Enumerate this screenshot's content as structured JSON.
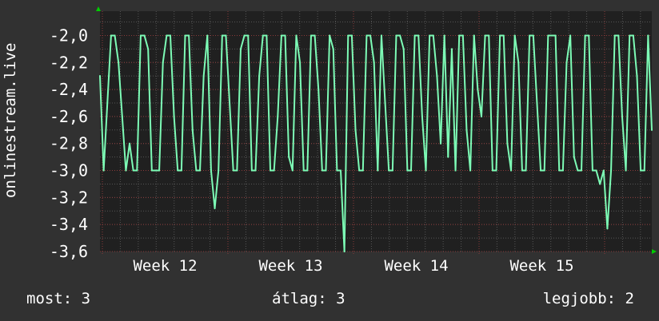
{
  "chart_data": {
    "type": "line",
    "ylabel": "onlinestream.live",
    "ylim": [
      -3.6,
      -1.82
    ],
    "yticks": [
      "-2,0",
      "-2,2",
      "-2,4",
      "-2,6",
      "-2,8",
      "-3,0",
      "-3,2",
      "-3,4",
      "-3,6"
    ],
    "ytick_values": [
      -2.0,
      -2.2,
      -2.4,
      -2.6,
      -2.8,
      -3.0,
      -3.2,
      -3.4,
      -3.6
    ],
    "xticks": [
      "Week 12",
      "Week 13",
      "Week 14",
      "Week 15"
    ],
    "grid": true,
    "colors": {
      "background": "#313131",
      "plot": "#202020",
      "line": "#7dfcb6",
      "major_grid": "#8a3a3a",
      "minor_grid": "#555555",
      "arrow": "#00cc00"
    },
    "series": [
      {
        "values": [
          -2.3,
          -3.0,
          -2.5,
          -2.0,
          -2.0,
          -2.2,
          -2.6,
          -3.0,
          -2.8,
          -3.0,
          -3.0,
          -2.0,
          -2.0,
          -2.1,
          -3.0,
          -3.0,
          -3.0,
          -2.2,
          -2.0,
          -2.0,
          -2.6,
          -3.0,
          -3.0,
          -2.0,
          -2.0,
          -2.7,
          -3.0,
          -3.0,
          -2.3,
          -2.0,
          -3.0,
          -3.28,
          -3.0,
          -2.0,
          -2.0,
          -2.5,
          -3.0,
          -3.0,
          -2.1,
          -2.0,
          -2.0,
          -3.0,
          -3.0,
          -2.3,
          -2.0,
          -2.0,
          -3.0,
          -3.0,
          -2.6,
          -2.0,
          -2.0,
          -2.9,
          -3.0,
          -2.0,
          -2.2,
          -3.0,
          -3.0,
          -2.0,
          -2.0,
          -2.4,
          -3.0,
          -3.0,
          -2.0,
          -2.1,
          -3.0,
          -3.0,
          -3.6,
          -2.0,
          -2.0,
          -2.7,
          -3.0,
          -3.0,
          -2.0,
          -2.0,
          -2.2,
          -3.0,
          -2.0,
          -2.5,
          -3.0,
          -3.0,
          -2.0,
          -2.0,
          -2.1,
          -3.0,
          -3.0,
          -2.0,
          -2.0,
          -2.6,
          -3.0,
          -2.0,
          -2.0,
          -2.3,
          -2.8,
          -2.0,
          -2.9,
          -2.1,
          -3.0,
          -2.0,
          -2.0,
          -2.7,
          -3.0,
          -2.0,
          -2.4,
          -2.6,
          -2.0,
          -2.0,
          -3.0,
          -3.0,
          -2.0,
          -2.0,
          -2.8,
          -3.0,
          -2.0,
          -2.2,
          -3.0,
          -3.0,
          -2.0,
          -2.0,
          -2.5,
          -3.0,
          -3.0,
          -2.0,
          -2.0,
          -2.0,
          -3.0,
          -3.0,
          -2.2,
          -2.0,
          -2.9,
          -3.0,
          -3.0,
          -2.0,
          -2.0,
          -3.0,
          -3.0,
          -3.1,
          -3.0,
          -3.43,
          -3.0,
          -2.0,
          -2.0,
          -2.6,
          -3.0,
          -2.0,
          -2.0,
          -2.3,
          -3.0,
          -3.0,
          -2.0,
          -2.7
        ]
      }
    ]
  },
  "legend": {
    "current": "most: 3",
    "average": "átlag: 3",
    "best": "legjobb: 2"
  }
}
